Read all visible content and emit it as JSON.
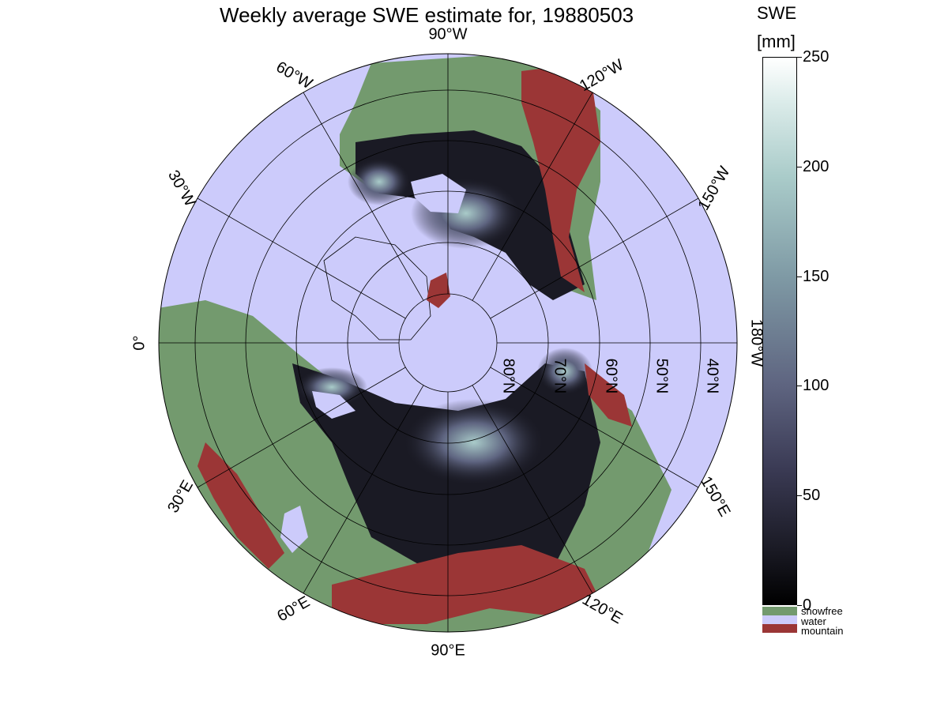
{
  "title": "Weekly average SWE estimate for, 19880503",
  "colorbar": {
    "title": "SWE",
    "unit": "[mm]",
    "min": 0,
    "max": 250,
    "ticks": [
      0,
      50,
      100,
      150,
      200,
      250
    ],
    "tick_labels": [
      "0",
      "50",
      "100",
      "150",
      "200",
      "250"
    ]
  },
  "categories": [
    {
      "label": "snowfree",
      "color": "#739a6e"
    },
    {
      "label": "water",
      "color": "#cccbfb"
    },
    {
      "label": "mountain",
      "color": "#9b3636"
    }
  ],
  "map": {
    "projection": "north-polar-stereographic",
    "longitude_labels": [
      {
        "lon": -90,
        "text": "90°W"
      },
      {
        "lon": -60,
        "text": "60°W"
      },
      {
        "lon": -30,
        "text": "30°W"
      },
      {
        "lon": 0,
        "text": "0°"
      },
      {
        "lon": 30,
        "text": "30°E"
      },
      {
        "lon": 60,
        "text": "60°E"
      },
      {
        "lon": 90,
        "text": "90°E"
      },
      {
        "lon": 120,
        "text": "120°E"
      },
      {
        "lon": 150,
        "text": "150°E"
      },
      {
        "lon": 180,
        "text": "180°W"
      },
      {
        "lon": -150,
        "text": "150°W"
      },
      {
        "lon": -120,
        "text": "120°W"
      }
    ],
    "latitude_labels": [
      {
        "lat": 80,
        "text": "80°N"
      },
      {
        "lat": 70,
        "text": "70°N"
      },
      {
        "lat": 60,
        "text": "60°N"
      },
      {
        "lat": 50,
        "text": "50°N"
      },
      {
        "lat": 40,
        "text": "40°N"
      }
    ]
  }
}
